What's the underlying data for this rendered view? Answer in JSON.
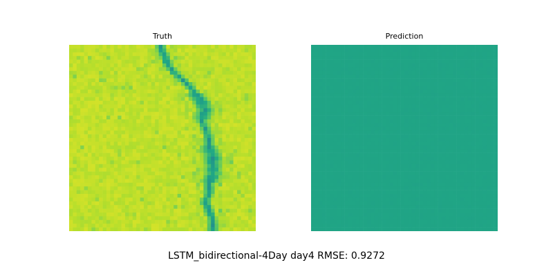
{
  "figure": {
    "suptitle": "LSTM_bidirectional-4Day day4 RMSE: 0.9272"
  },
  "panels": [
    {
      "title": "Truth"
    },
    {
      "title": "Prediction"
    }
  ],
  "chart_data": [
    {
      "type": "heatmap",
      "title": "Truth",
      "colormap": "viridis",
      "grid_size": [
        50,
        50
      ],
      "axes": "off",
      "description_values": {
        "background_level": 0.9,
        "channel_level": 0.55,
        "channel_path_x_by_row": [
          [
            0,
            24
          ],
          [
            5,
            25
          ],
          [
            10,
            26
          ],
          [
            15,
            28
          ],
          [
            20,
            31
          ],
          [
            25,
            33
          ],
          [
            30,
            35
          ],
          [
            35,
            36
          ],
          [
            40,
            35
          ],
          [
            45,
            36
          ],
          [
            50,
            37
          ],
          [
            55,
            37
          ],
          [
            60,
            38
          ],
          [
            65,
            38
          ],
          [
            70,
            38
          ],
          [
            75,
            37
          ],
          [
            80,
            37
          ],
          [
            85,
            36
          ],
          [
            90,
            37
          ],
          [
            95,
            38
          ],
          [
            100,
            38
          ]
        ]
      }
    },
    {
      "type": "heatmap",
      "title": "Prediction",
      "colormap": "viridis",
      "grid_size": [
        50,
        50
      ],
      "axes": "off",
      "uniform_level": 0.6
    }
  ],
  "colors": {
    "truth_background": "#d5e21a",
    "truth_channel": "#20a486",
    "prediction_fill": "#22a884"
  }
}
